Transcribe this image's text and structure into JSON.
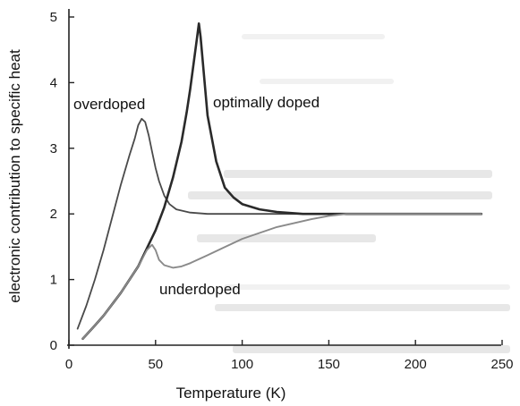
{
  "chart_data": {
    "type": "line",
    "xlabel": "Temperature (K)",
    "ylabel": "electronic contribution to specific heat",
    "xlim": [
      0,
      250
    ],
    "ylim": [
      0,
      5
    ],
    "xticks": [
      "0",
      "50",
      "100",
      "150",
      "200",
      "250"
    ],
    "yticks": [
      "0",
      "1",
      "2",
      "3",
      "4",
      "5"
    ],
    "grid": false,
    "series": [
      {
        "name": "overdoped",
        "color": "#4a4a4a",
        "x": [
          5,
          10,
          15,
          20,
          25,
          30,
          35,
          38,
          40,
          42,
          44,
          46,
          48,
          50,
          52,
          55,
          58,
          62,
          70,
          80,
          100,
          150,
          200,
          238
        ],
        "y": [
          0.25,
          0.6,
          1.0,
          1.45,
          1.95,
          2.45,
          2.9,
          3.15,
          3.35,
          3.45,
          3.4,
          3.2,
          2.95,
          2.7,
          2.5,
          2.28,
          2.15,
          2.07,
          2.02,
          2.0,
          2.0,
          2.0,
          2.0,
          2.0
        ]
      },
      {
        "name": "optimally doped",
        "color": "#2a2a2a",
        "x": [
          8,
          15,
          20,
          30,
          40,
          50,
          55,
          60,
          65,
          68,
          70,
          72,
          74,
          75,
          76,
          78,
          80,
          85,
          90,
          95,
          100,
          110,
          120,
          135,
          150,
          200,
          238
        ],
        "y": [
          0.1,
          0.3,
          0.45,
          0.8,
          1.2,
          1.75,
          2.1,
          2.55,
          3.1,
          3.55,
          3.9,
          4.3,
          4.7,
          4.9,
          4.7,
          4.1,
          3.5,
          2.8,
          2.4,
          2.25,
          2.15,
          2.07,
          2.03,
          2.0,
          2.0,
          2.0,
          2.0
        ]
      },
      {
        "name": "underdoped",
        "color": "#8a8a8a",
        "x": [
          8,
          15,
          20,
          30,
          40,
          45,
          48,
          50,
          52,
          55,
          60,
          65,
          70,
          80,
          100,
          120,
          140,
          150,
          160,
          200,
          238
        ],
        "y": [
          0.1,
          0.3,
          0.45,
          0.8,
          1.2,
          1.45,
          1.53,
          1.45,
          1.3,
          1.22,
          1.18,
          1.2,
          1.25,
          1.37,
          1.62,
          1.8,
          1.92,
          1.97,
          2.0,
          2.0,
          2.0
        ]
      }
    ]
  }
}
